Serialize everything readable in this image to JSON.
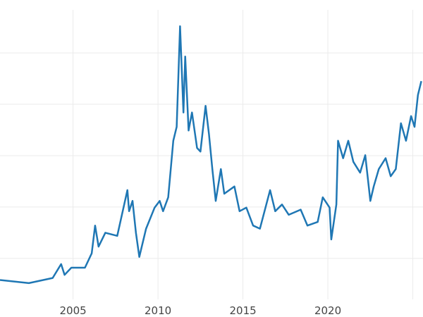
{
  "chart_data": {
    "type": "line",
    "title": "",
    "xlabel": "",
    "ylabel": "",
    "xlim": [
      2000.7,
      2025.6
    ],
    "ylim": [
      -1.4,
      60.3
    ],
    "grid": true,
    "legend": "none",
    "x_ticks": [
      2005,
      2010,
      2015,
      2020,
      2025
    ],
    "x_tick_labels": [
      "2005",
      "2010",
      "2015",
      "2020",
      ""
    ],
    "y_gridlines": [
      10,
      20,
      30,
      40,
      50
    ],
    "series": [
      {
        "color": "#1f77b4",
        "x": [
          2000.7,
          2002.4,
          2003.8,
          2004.3,
          2004.5,
          2004.9,
          2005.7,
          2006.1,
          2006.3,
          2006.5,
          2006.9,
          2007.6,
          2008.2,
          2008.3,
          2008.5,
          2008.7,
          2008.9,
          2009.3,
          2009.8,
          2010.1,
          2010.3,
          2010.6,
          2010.9,
          2011.1,
          2011.3,
          2011.5,
          2011.6,
          2011.8,
          2012.0,
          2012.3,
          2012.5,
          2012.8,
          2013.0,
          2013.2,
          2013.4,
          2013.7,
          2013.9,
          2014.5,
          2014.8,
          2015.2,
          2015.6,
          2016.0,
          2016.6,
          2016.9,
          2017.3,
          2017.7,
          2018.4,
          2018.8,
          2019.4,
          2019.7,
          2020.1,
          2020.2,
          2020.5,
          2020.6,
          2020.9,
          2021.2,
          2021.5,
          2021.9,
          2022.2,
          2022.5,
          2022.7,
          2023.0,
          2023.4,
          2023.7,
          2024.0,
          2024.3,
          2024.6,
          2024.9,
          2025.1,
          2025.3,
          2025.5
        ],
        "y": [
          5.8,
          5.2,
          6.2,
          8.9,
          6.8,
          8.2,
          8.2,
          11,
          16.4,
          12.3,
          15,
          14.4,
          23.3,
          19.2,
          21.2,
          15,
          10.3,
          15.8,
          19.9,
          21.2,
          19.2,
          21.9,
          32.9,
          35.6,
          55.2,
          38.4,
          49.3,
          34.9,
          38.4,
          31.5,
          30.8,
          39.7,
          34.2,
          27.4,
          21.2,
          27.4,
          22.6,
          24,
          19.2,
          19.9,
          16.4,
          15.8,
          23.3,
          19.2,
          20.5,
          18.5,
          19.5,
          16.4,
          17.1,
          21.9,
          19.9,
          13.7,
          20.5,
          32.9,
          29.5,
          32.9,
          28.8,
          26.7,
          30.1,
          21.2,
          24,
          27.4,
          29.5,
          26,
          27.4,
          36.3,
          32.9,
          37.7,
          35.6,
          41.8,
          44.5
        ]
      }
    ]
  }
}
